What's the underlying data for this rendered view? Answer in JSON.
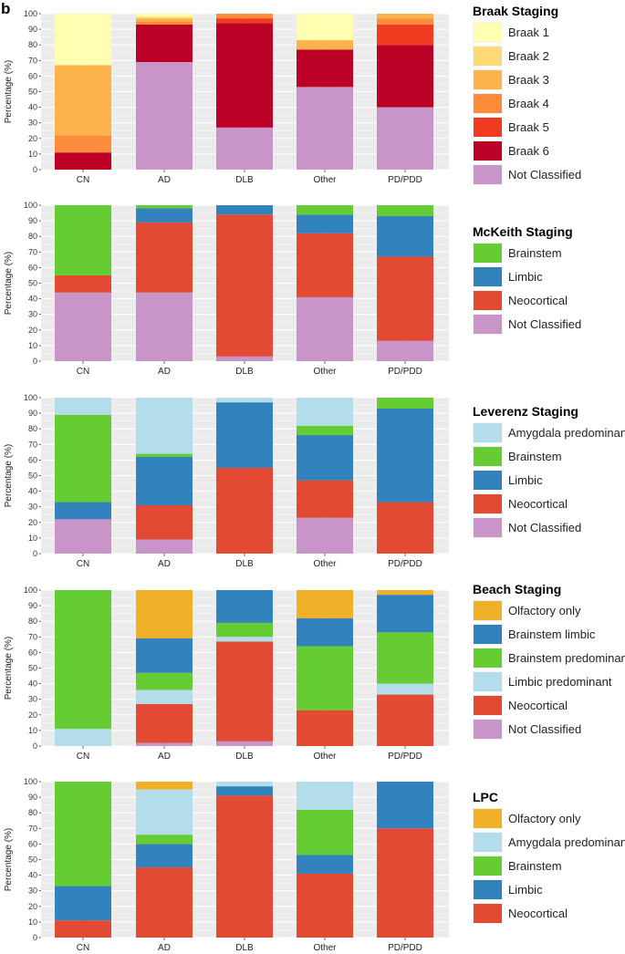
{
  "panel_label": "b",
  "colors": {
    "braak1": "#FFFFB2",
    "braak2": "#FED976",
    "braak3": "#FEB24C",
    "braak4": "#FD8D3C",
    "braak5": "#F03B20",
    "braak6": "#BD0026",
    "not_classified": "#C994C7",
    "olfactory": "#F0B027",
    "amygdala": "#B3DDEA",
    "brainstem": "#66CC33",
    "brainstem_limbic": "#3182BD",
    "limbic": "#3182BD",
    "limbic_predominant": "#B3DDEA",
    "neocortical": "#E34A33",
    "panel_bg": "#EBEBEB",
    "grid": "#FFFFFF"
  },
  "chart_data": [
    {
      "type": "bar",
      "stacked": true,
      "title": "Braak Staging",
      "ylabel": "Percentage (%)",
      "xlabel": "",
      "ylim": [
        0,
        100
      ],
      "yticks": [
        "0",
        "10",
        "20",
        "30",
        "40",
        "50",
        "60",
        "70",
        "80",
        "90",
        "100"
      ],
      "categories": [
        "CN",
        "AD",
        "DLB",
        "Other",
        "PD/PDD"
      ],
      "series": [
        {
          "name": "Not Classified",
          "color_key": "not_classified",
          "values": [
            0,
            69,
            27,
            53,
            40
          ]
        },
        {
          "name": "Braak 6",
          "color_key": "braak6",
          "values": [
            11,
            24,
            67,
            24,
            40
          ]
        },
        {
          "name": "Braak 5",
          "color_key": "braak5",
          "values": [
            0,
            0,
            3,
            0,
            13
          ]
        },
        {
          "name": "Braak 4",
          "color_key": "braak4",
          "values": [
            11,
            2,
            3,
            0,
            4
          ]
        },
        {
          "name": "Braak 3",
          "color_key": "braak3",
          "values": [
            45,
            2,
            0,
            6,
            3
          ]
        },
        {
          "name": "Braak 2",
          "color_key": "braak2",
          "values": [
            0,
            1,
            0,
            0,
            0
          ]
        },
        {
          "name": "Braak 1",
          "color_key": "braak1",
          "values": [
            33,
            2,
            0,
            17,
            0
          ]
        }
      ],
      "legend_order": [
        "Braak 1",
        "Braak 2",
        "Braak 3",
        "Braak 4",
        "Braak 5",
        "Braak 6",
        "Not Classified"
      ]
    },
    {
      "type": "bar",
      "stacked": true,
      "title": "McKeith Staging",
      "ylabel": "Percentage (%)",
      "xlabel": "",
      "ylim": [
        0,
        100
      ],
      "yticks": [
        "0",
        "10",
        "20",
        "30",
        "40",
        "50",
        "60",
        "70",
        "80",
        "90",
        "100"
      ],
      "categories": [
        "CN",
        "AD",
        "DLB",
        "Other",
        "PD/PDD"
      ],
      "series": [
        {
          "name": "Not Classified",
          "color_key": "not_classified",
          "values": [
            44,
            44,
            3,
            41,
            13
          ]
        },
        {
          "name": "Neocortical",
          "color_key": "neocortical",
          "values": [
            11,
            45,
            91,
            41,
            54
          ]
        },
        {
          "name": "Limbic",
          "color_key": "limbic",
          "values": [
            0,
            9,
            6,
            12,
            26
          ]
        },
        {
          "name": "Brainstem",
          "color_key": "brainstem",
          "values": [
            45,
            2,
            0,
            6,
            7
          ]
        }
      ],
      "legend_order": [
        "Brainstem",
        "Limbic",
        "Neocortical",
        "Not Classified"
      ]
    },
    {
      "type": "bar",
      "stacked": true,
      "title": "Leverenz Staging",
      "ylabel": "Percentage (%)",
      "xlabel": "",
      "ylim": [
        0,
        100
      ],
      "yticks": [
        "0",
        "10",
        "20",
        "30",
        "40",
        "50",
        "60",
        "70",
        "80",
        "90",
        "100"
      ],
      "categories": [
        "CN",
        "AD",
        "DLB",
        "Other",
        "PD/PDD"
      ],
      "series": [
        {
          "name": "Not Classified",
          "color_key": "not_classified",
          "values": [
            22,
            9,
            0,
            23,
            0
          ]
        },
        {
          "name": "Neocortical",
          "color_key": "neocortical",
          "values": [
            0,
            22,
            55,
            24,
            33
          ]
        },
        {
          "name": "Limbic",
          "color_key": "limbic",
          "values": [
            11,
            31,
            42,
            29,
            60
          ]
        },
        {
          "name": "Brainstem",
          "color_key": "brainstem",
          "values": [
            56,
            2,
            0,
            6,
            7
          ]
        },
        {
          "name": "Amygdala predominant",
          "color_key": "amygdala",
          "values": [
            11,
            36,
            3,
            18,
            0
          ]
        }
      ],
      "legend_order": [
        "Amygdala predominant",
        "Brainstem",
        "Limbic",
        "Neocortical",
        "Not Classified"
      ]
    },
    {
      "type": "bar",
      "stacked": true,
      "title": "Beach Staging",
      "ylabel": "Percentage (%)",
      "xlabel": "",
      "ylim": [
        0,
        100
      ],
      "yticks": [
        "0",
        "10",
        "20",
        "30",
        "40",
        "50",
        "60",
        "70",
        "80",
        "90",
        "100"
      ],
      "categories": [
        "CN",
        "AD",
        "DLB",
        "Other",
        "PD/PDD"
      ],
      "series": [
        {
          "name": "Not Classified",
          "color_key": "not_classified",
          "values": [
            0,
            2,
            3,
            0,
            0
          ]
        },
        {
          "name": "Neocortical",
          "color_key": "neocortical",
          "values": [
            0,
            25,
            64,
            23,
            33
          ]
        },
        {
          "name": "Limbic predominant",
          "color_key": "limbic_predominant",
          "values": [
            11,
            9,
            3,
            0,
            7
          ]
        },
        {
          "name": "Brainstem predominant",
          "color_key": "brainstem",
          "values": [
            89,
            11,
            9,
            41,
            33
          ]
        },
        {
          "name": "Brainstem limbic",
          "color_key": "brainstem_limbic",
          "values": [
            0,
            22,
            21,
            18,
            24
          ]
        },
        {
          "name": "Olfactory only",
          "color_key": "olfactory",
          "values": [
            0,
            31,
            0,
            18,
            3
          ]
        }
      ],
      "legend_order": [
        "Olfactory only",
        "Brainstem limbic",
        "Brainstem predominant",
        "Limbic predominant",
        "Neocortical",
        "Not Classified"
      ]
    },
    {
      "type": "bar",
      "stacked": true,
      "title": "LPC",
      "ylabel": "Percentage (%)",
      "xlabel": "",
      "ylim": [
        0,
        100
      ],
      "yticks": [
        "0",
        "10",
        "20",
        "30",
        "40",
        "50",
        "60",
        "70",
        "80",
        "90",
        "100"
      ],
      "categories": [
        "CN",
        "AD",
        "DLB",
        "Other",
        "PD/PDD"
      ],
      "series": [
        {
          "name": "Neocortical",
          "color_key": "neocortical",
          "values": [
            11,
            45,
            91,
            41,
            70
          ]
        },
        {
          "name": "Limbic",
          "color_key": "limbic",
          "values": [
            22,
            15,
            6,
            12,
            30
          ]
        },
        {
          "name": "Brainstem",
          "color_key": "brainstem",
          "values": [
            67,
            6,
            0,
            29,
            0
          ]
        },
        {
          "name": "Amygdala predominant",
          "color_key": "amygdala",
          "values": [
            0,
            29,
            3,
            18,
            0
          ]
        },
        {
          "name": "Olfactory only",
          "color_key": "olfactory",
          "values": [
            0,
            5,
            0,
            0,
            0
          ]
        }
      ],
      "legend_order": [
        "Olfactory only",
        "Amygdala predominant",
        "Brainstem",
        "Limbic",
        "Neocortical"
      ]
    }
  ]
}
